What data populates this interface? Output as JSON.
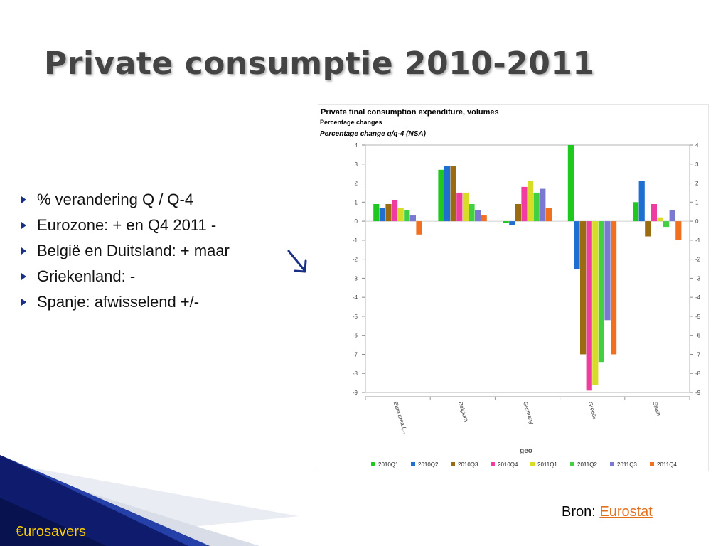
{
  "slide": {
    "title": "Private consumptie 2010-2011",
    "bullets": [
      "% verandering Q / Q-4",
      "Eurozone: +  en Q4 2011 -",
      "België en Duitsland: + maar",
      "Griekenland: -",
      "Spanje: afwisselend +/-"
    ],
    "source_label": "Bron:",
    "source_link": "Eurostat",
    "brand": "€urosavers"
  },
  "colors": {
    "title": "#444444",
    "bullet_marker": "#1a2f86",
    "arrow": "#1a2f86",
    "link": "#e4701e",
    "brand_text": "#ffd200",
    "corner_dark": "#0f1c6e"
  },
  "chart_data": {
    "type": "bar",
    "title": "Private final consumption expenditure, volumes",
    "subtitle": "Percentage changes",
    "subtitle2": "Percentage change q/q-4 (NSA)",
    "xlabel": "geo",
    "ylabel": "",
    "ylim": [
      -9,
      4
    ],
    "yticks": [
      4,
      3,
      2,
      1,
      0,
      -1,
      -2,
      -3,
      -4,
      -5,
      -6,
      -7,
      -8,
      -9
    ],
    "grid": false,
    "legend_position": "bottom",
    "categories": [
      "Euro area (...",
      "Belgium",
      "Germany",
      "Greece",
      "Spain"
    ],
    "series": [
      {
        "name": "2010Q1",
        "color": "#1ec81e",
        "values": [
          0.9,
          2.7,
          -0.1,
          4.0,
          1.0
        ]
      },
      {
        "name": "2010Q2",
        "color": "#1f6fd1",
        "values": [
          0.7,
          2.9,
          -0.2,
          -2.5,
          2.1
        ]
      },
      {
        "name": "2010Q3",
        "color": "#9a6b11",
        "values": [
          0.9,
          2.9,
          0.9,
          -7.0,
          -0.8
        ]
      },
      {
        "name": "2010Q4",
        "color": "#f03ca0",
        "values": [
          1.1,
          1.5,
          1.8,
          -8.9,
          0.9
        ]
      },
      {
        "name": "2011Q1",
        "color": "#d7dc28",
        "values": [
          0.7,
          1.5,
          2.1,
          -8.6,
          0.2
        ]
      },
      {
        "name": "2011Q2",
        "color": "#42d042",
        "values": [
          0.6,
          0.9,
          1.5,
          -7.4,
          -0.3
        ]
      },
      {
        "name": "2011Q3",
        "color": "#7a78d0",
        "values": [
          0.3,
          0.6,
          1.7,
          -5.2,
          0.6
        ]
      },
      {
        "name": "2011Q4",
        "color": "#f07020",
        "values": [
          -0.7,
          0.3,
          0.7,
          -7.0,
          -1.0
        ]
      }
    ]
  }
}
